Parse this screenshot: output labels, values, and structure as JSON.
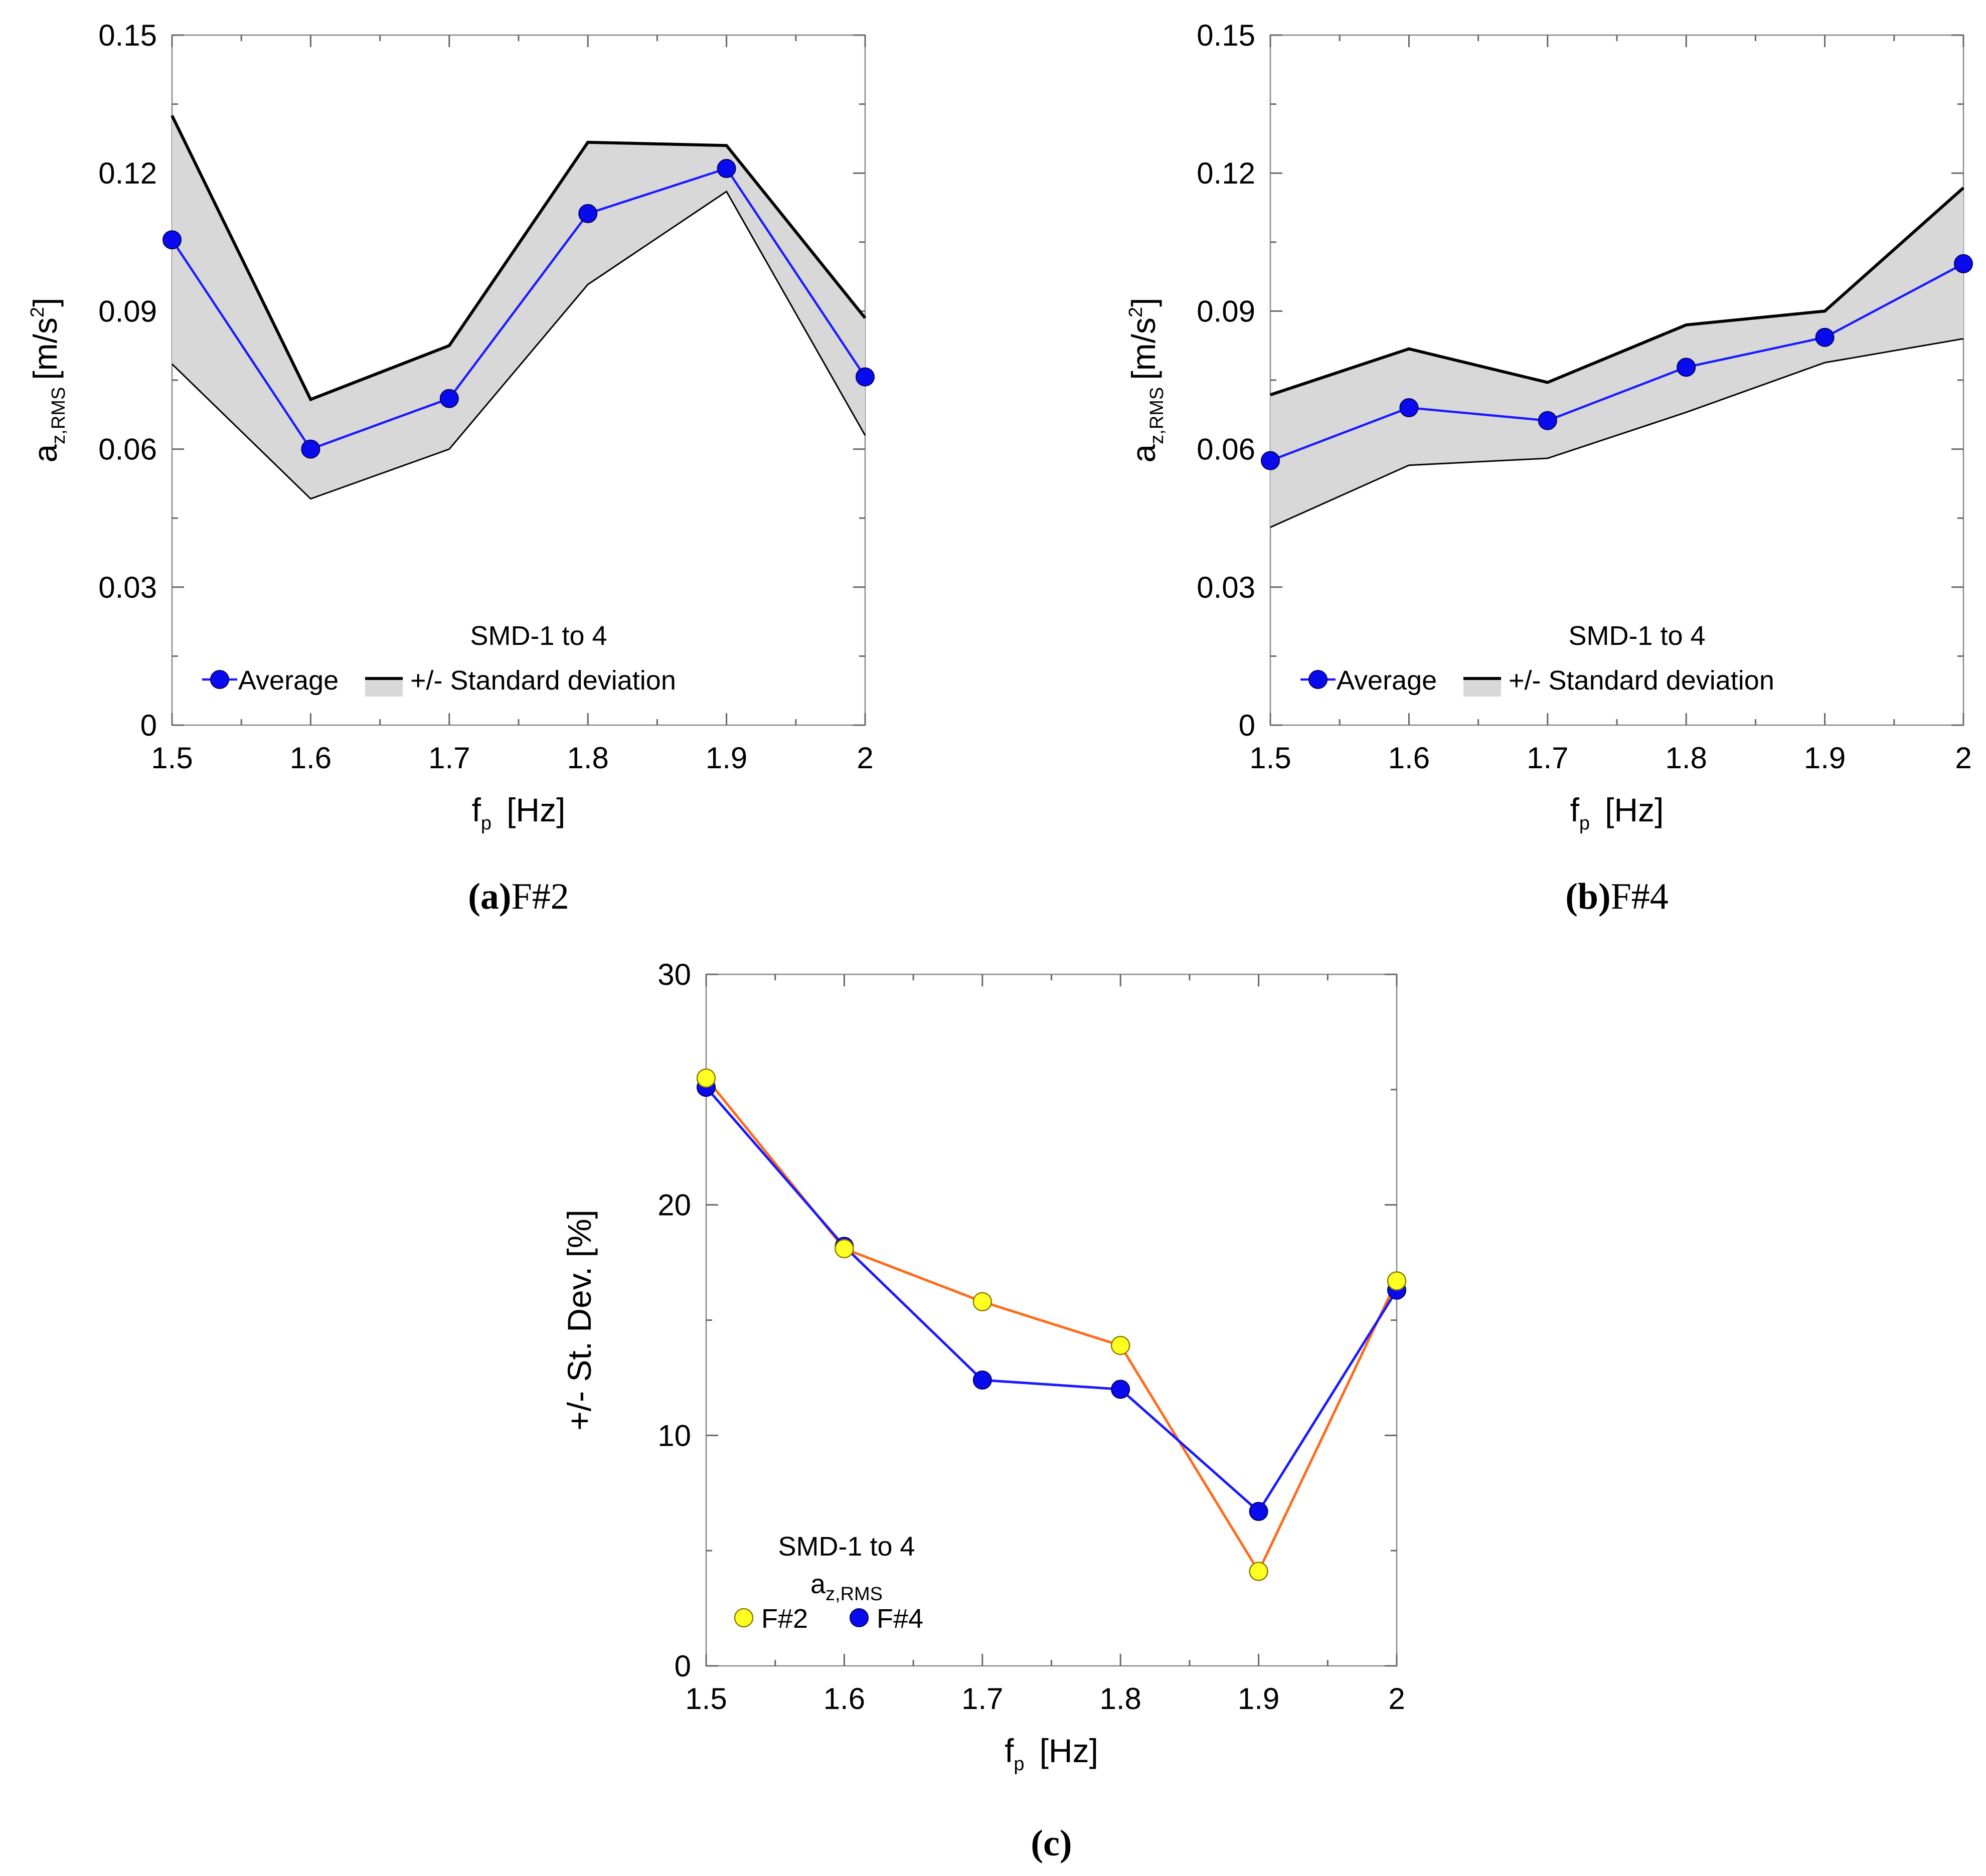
{
  "chart_data": [
    {
      "id": "a",
      "type": "line",
      "caption_label": "(a)",
      "caption_text": "F#2",
      "xlabel": {
        "main": "f",
        "sub": "p",
        "unit": "[Hz]"
      },
      "ylabel": {
        "main": "a",
        "sub": "z,RMS",
        "unit_pre": "[m/s",
        "unit_sup": "2",
        "unit_post": "]"
      },
      "xlim": [
        1.5,
        2.0
      ],
      "ylim": [
        0,
        0.15
      ],
      "x_ticks": [
        1.5,
        1.6,
        1.7,
        1.8,
        1.9,
        2.0
      ],
      "x_tick_labels": [
        "1.5",
        "1.6",
        "1.7",
        "1.8",
        "1.9",
        "2"
      ],
      "y_ticks": [
        0,
        0.03,
        0.06,
        0.09,
        0.12,
        0.15
      ],
      "y_tick_labels": [
        "0",
        "0.03",
        "0.06",
        "0.09",
        "0.12",
        "0.15"
      ],
      "x": [
        1.5,
        1.6,
        1.7,
        1.8,
        1.9,
        2.0
      ],
      "series": [
        {
          "name": "Average",
          "values": [
            0.1055,
            0.06,
            0.071,
            0.1112,
            0.121,
            0.0757
          ]
        }
      ],
      "band": {
        "name": "+/- Standard deviation",
        "upper": [
          0.1325,
          0.0708,
          0.0825,
          0.1267,
          0.126,
          0.0885
        ],
        "lower": [
          0.0785,
          0.0492,
          0.06,
          0.0958,
          0.116,
          0.063
        ]
      },
      "legend": {
        "title": "SMD-1 to 4",
        "entries": [
          "Average",
          "+/- Standard deviation"
        ],
        "position": "bottom-center"
      },
      "grid": false
    },
    {
      "id": "b",
      "type": "line",
      "caption_label": "(b)",
      "caption_text": "F#4",
      "xlabel": {
        "main": "f",
        "sub": "p",
        "unit": "[Hz]"
      },
      "ylabel": {
        "main": "a",
        "sub": "z,RMS",
        "unit_pre": "[m/s",
        "unit_sup": "2",
        "unit_post": "]"
      },
      "xlim": [
        1.5,
        2.0
      ],
      "ylim": [
        0,
        0.15
      ],
      "x_ticks": [
        1.5,
        1.6,
        1.7,
        1.8,
        1.9,
        2.0
      ],
      "x_tick_labels": [
        "1.5",
        "1.6",
        "1.7",
        "1.8",
        "1.9",
        "2"
      ],
      "y_ticks": [
        0,
        0.03,
        0.06,
        0.09,
        0.12,
        0.15
      ],
      "y_tick_labels": [
        "0",
        "0.03",
        "0.06",
        "0.09",
        "0.12",
        "0.15"
      ],
      "x": [
        1.5,
        1.6,
        1.7,
        1.8,
        1.9,
        2.0
      ],
      "series": [
        {
          "name": "Average",
          "values": [
            0.0575,
            0.069,
            0.0662,
            0.0778,
            0.0843,
            0.1003
          ]
        }
      ],
      "band": {
        "name": "+/- Standard deviation",
        "upper": [
          0.0718,
          0.0818,
          0.0745,
          0.087,
          0.09,
          0.1168
        ],
        "lower": [
          0.043,
          0.0565,
          0.058,
          0.068,
          0.0788,
          0.084
        ]
      },
      "legend": {
        "title": "SMD-1 to 4",
        "entries": [
          "Average",
          "+/- Standard deviation"
        ],
        "position": "bottom-center"
      },
      "grid": false
    },
    {
      "id": "c",
      "type": "line",
      "caption_label": "(c)",
      "caption_text": "",
      "xlabel": {
        "main": "f",
        "sub": "p",
        "unit": "[Hz]"
      },
      "ylabel": {
        "text": "+/- St. Dev.  [%]"
      },
      "xlim": [
        1.5,
        2.0
      ],
      "ylim": [
        0,
        30
      ],
      "x_ticks": [
        1.5,
        1.6,
        1.7,
        1.8,
        1.9,
        2.0
      ],
      "x_tick_labels": [
        "1.5",
        "1.6",
        "1.7",
        "1.8",
        "1.9",
        "2"
      ],
      "y_ticks": [
        0,
        10,
        20,
        30
      ],
      "y_tick_labels": [
        "0",
        "10",
        "20",
        "30"
      ],
      "x": [
        1.5,
        1.6,
        1.7,
        1.8,
        1.9,
        2.0
      ],
      "series": [
        {
          "name": "F#2",
          "values": [
            25.5,
            18.1,
            15.8,
            13.9,
            4.1,
            16.7
          ]
        },
        {
          "name": "F#4",
          "values": [
            25.1,
            18.2,
            12.4,
            12.0,
            6.7,
            16.3
          ]
        }
      ],
      "legend": {
        "title": "SMD-1 to 4",
        "subtitle_main": "a",
        "subtitle_sub": "z,RMS",
        "entries": [
          "F#2",
          "F#4"
        ],
        "position": "bottom-left"
      },
      "grid": false
    }
  ]
}
